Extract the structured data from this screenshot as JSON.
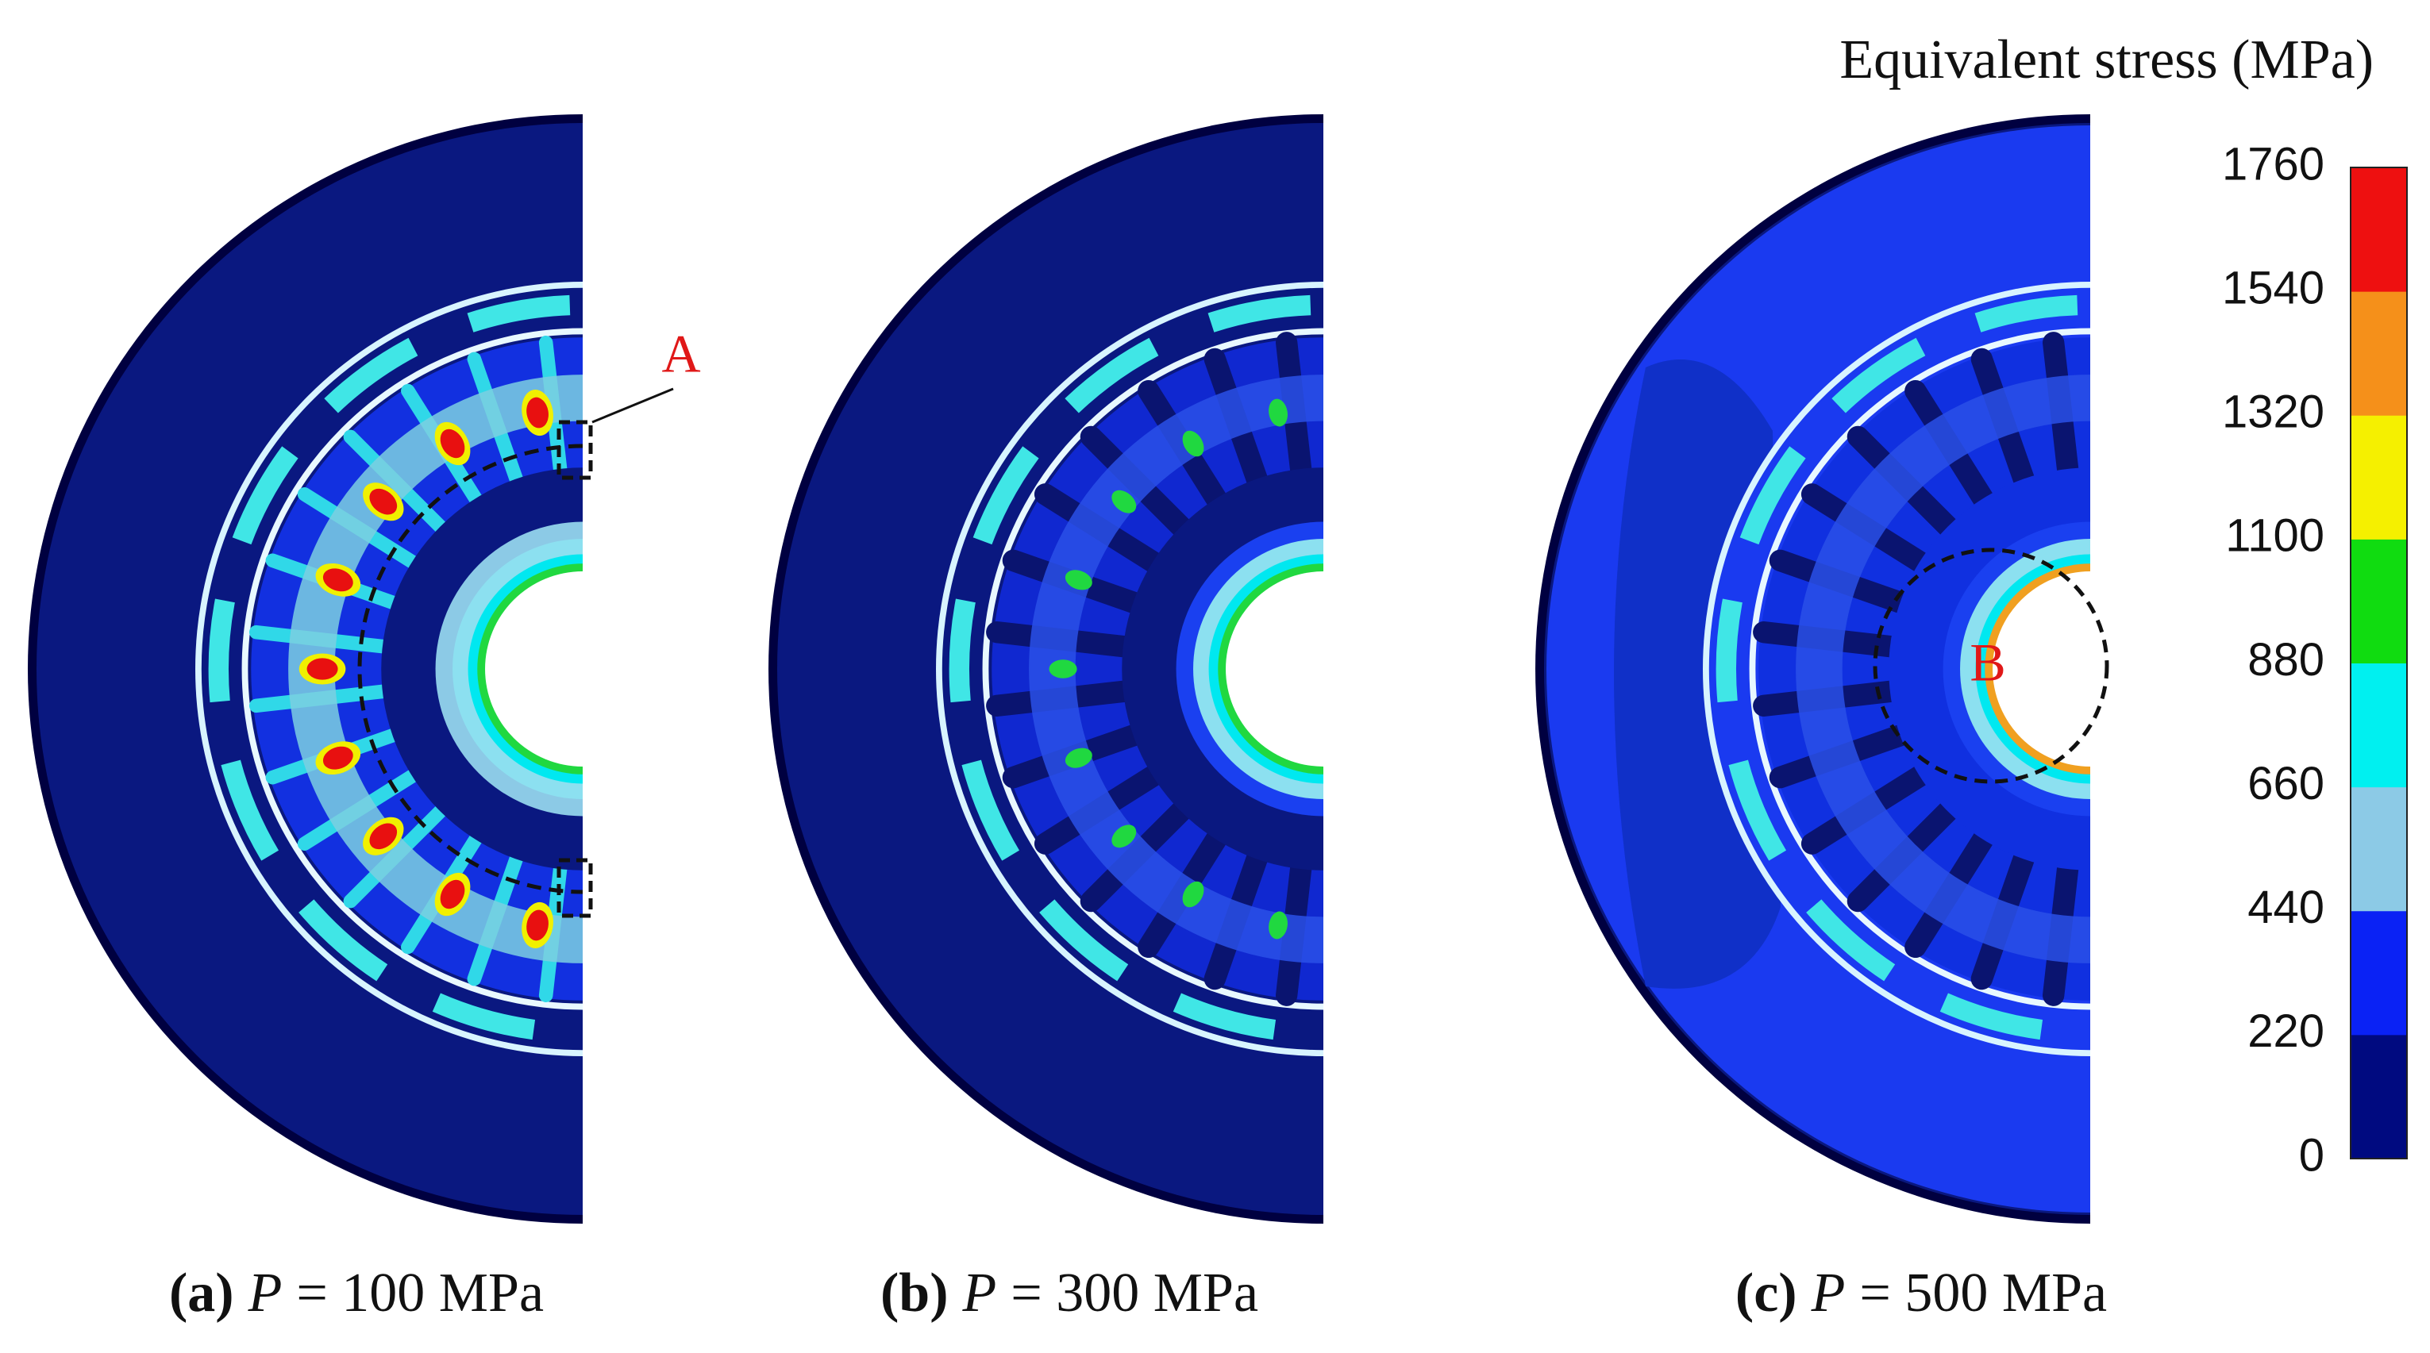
{
  "legend": {
    "title": "Equivalent stress (MPa)",
    "levels": [
      0,
      220,
      440,
      660,
      880,
      1100,
      1320,
      1540,
      1760
    ],
    "colors": [
      "#000a80",
      "#0a22f5",
      "#8ccae6",
      "#00f0f0",
      "#10dc10",
      "#f5f000",
      "#f5901a",
      "#ee1010"
    ]
  },
  "panels": [
    {
      "tag": "(a)",
      "variable": "P",
      "value": "= 100 MPa",
      "marker": "A"
    },
    {
      "tag": "(b)",
      "variable": "P",
      "value": "= 300 MPa"
    },
    {
      "tag": "(c)",
      "variable": "P",
      "value": "= 500 MPa",
      "marker": "B"
    }
  ]
}
